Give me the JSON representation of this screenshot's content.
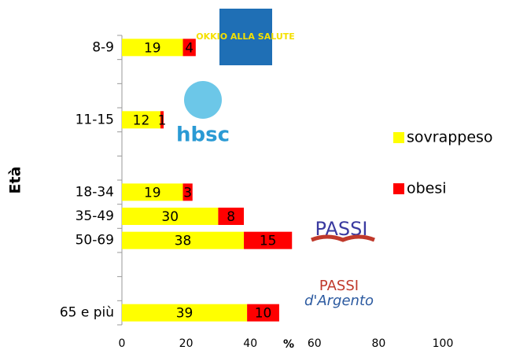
{
  "chart_data": {
    "type": "hbar_stacked",
    "ylabel": "Età",
    "xlabel": "%",
    "categories": [
      "8-9",
      null,
      null,
      "11-15",
      null,
      null,
      "18-34",
      "35-49",
      "50-69",
      null,
      null,
      "65 e più"
    ],
    "series": [
      {
        "name": "sovrappeso",
        "color": "#ffff00",
        "values": [
          19,
          null,
          null,
          12,
          null,
          null,
          19,
          30,
          38,
          null,
          null,
          39
        ]
      },
      {
        "name": "obesi",
        "color": "#ff0000",
        "values": [
          4,
          null,
          null,
          1,
          null,
          null,
          3,
          8,
          15,
          null,
          null,
          10
        ]
      }
    ],
    "xlim": [
      0,
      100
    ],
    "xticks": [
      0,
      20,
      40,
      60,
      80,
      100
    ],
    "annotations": [
      "OKKIO ALLA SALUTE",
      "hbsc",
      "PASSI",
      "PASSI",
      "d'Argento"
    ]
  }
}
